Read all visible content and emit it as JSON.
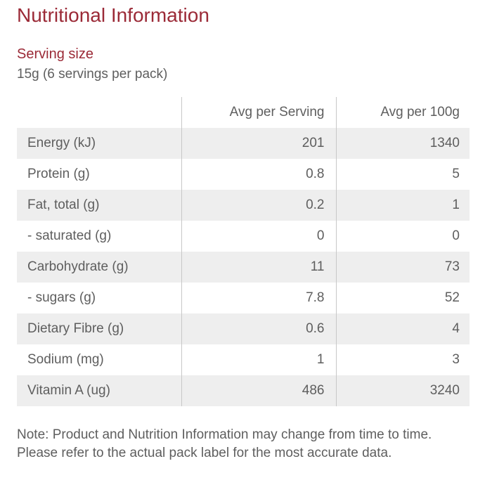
{
  "title": "Nutritional Information",
  "serving": {
    "heading": "Serving size",
    "value": "15g (6 servings per pack)"
  },
  "table": {
    "headers": [
      "",
      "Avg per Serving",
      "Avg per 100g"
    ],
    "rows": [
      {
        "name": "Energy (kJ)",
        "per_serving": "201",
        "per_100g": "1340"
      },
      {
        "name": "Protein (g)",
        "per_serving": "0.8",
        "per_100g": "5"
      },
      {
        "name": "Fat, total (g)",
        "per_serving": "0.2",
        "per_100g": "1"
      },
      {
        "name": "- saturated (g)",
        "per_serving": "0",
        "per_100g": "0"
      },
      {
        "name": "Carbohydrate (g)",
        "per_serving": "11",
        "per_100g": "73"
      },
      {
        "name": "- sugars (g)",
        "per_serving": "7.8",
        "per_100g": "52"
      },
      {
        "name": "Dietary Fibre (g)",
        "per_serving": "0.6",
        "per_100g": "4"
      },
      {
        "name": "Sodium (mg)",
        "per_serving": "1",
        "per_100g": "3"
      },
      {
        "name": "Vitamin A (ug)",
        "per_serving": "486",
        "per_100g": "3240"
      }
    ]
  },
  "note": "Note: Product and Nutrition Information may change from time to time. Please refer to the actual pack label for the most accurate data.",
  "colors": {
    "accent": "#9b2a37",
    "text": "#5e5e5e",
    "row_shade": "#eeeeee",
    "divider": "#c8c8c8"
  }
}
